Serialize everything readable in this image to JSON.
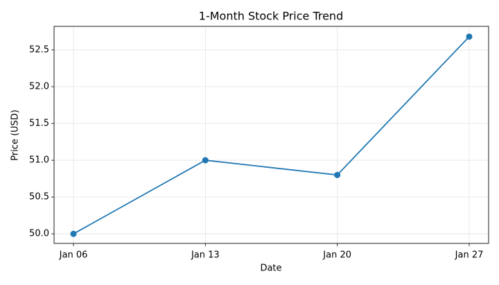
{
  "chart_data": {
    "type": "line",
    "title": "1-Month Stock Price Trend",
    "x_label": "Date",
    "y_label": "Price (USD)",
    "categories": [
      "Jan 06",
      "Jan 13",
      "Jan 20",
      "Jan 27"
    ],
    "values": [
      50.0,
      51.0,
      50.8,
      52.68
    ],
    "color": "#1f77b4",
    "ylim": [
      49.87,
      52.82
    ],
    "yticks": [
      {
        "value": 50.0,
        "label": "50.0"
      },
      50.5,
      {
        "value": 51.0,
        "label": "51.0"
      },
      51.5,
      {
        "value": 52.0,
        "label": "52.0"
      },
      52.5
    ],
    "grid": true
  }
}
